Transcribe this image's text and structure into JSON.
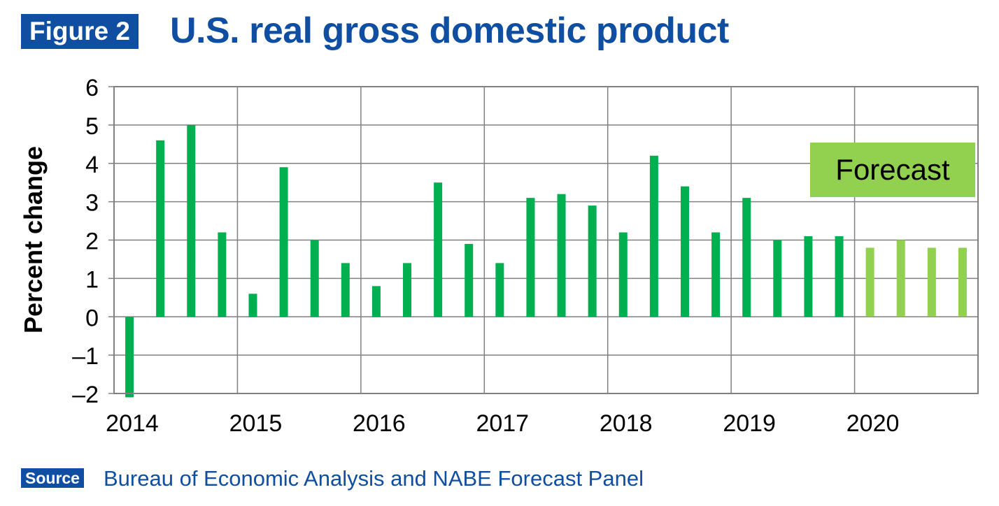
{
  "header": {
    "figure_label": "Figure 2",
    "title": "U.S. real gross domestic product"
  },
  "footer": {
    "source_label": "Source",
    "source_text": "Bureau of Economic Analysis and NABE Forecast Panel"
  },
  "colors": {
    "brand_blue": "#0f4ea1",
    "actual_bar": "#00b050",
    "forecast_bar": "#92d050",
    "forecast_box": "#92d050"
  },
  "chart_data": {
    "type": "bar",
    "ylabel": "Percent change",
    "xlabel": "",
    "ylim": [
      -2,
      6
    ],
    "yticks": [
      -2,
      -1,
      0,
      1,
      2,
      3,
      4,
      5,
      6
    ],
    "ytick_labels": [
      "–2",
      "–1",
      "0",
      "1",
      "2",
      "3",
      "4",
      "5",
      "6"
    ],
    "grid": true,
    "x_tick_labels": [
      "2014",
      "2015",
      "2016",
      "2017",
      "2018",
      "2019",
      "2020"
    ],
    "annotation": "Forecast",
    "series": [
      {
        "values": [
          -2.1,
          4.6,
          5.0,
          2.2,
          0.6,
          3.9,
          2.0,
          1.4,
          0.8,
          1.4,
          3.5,
          1.9,
          1.4,
          3.1,
          3.2,
          2.9,
          2.2,
          4.2,
          3.4,
          2.2,
          3.1,
          2.0,
          2.1,
          2.1
        ]
      },
      {
        "forecast": true,
        "values": [
          1.8,
          2.0,
          1.8,
          1.8
        ]
      }
    ]
  }
}
